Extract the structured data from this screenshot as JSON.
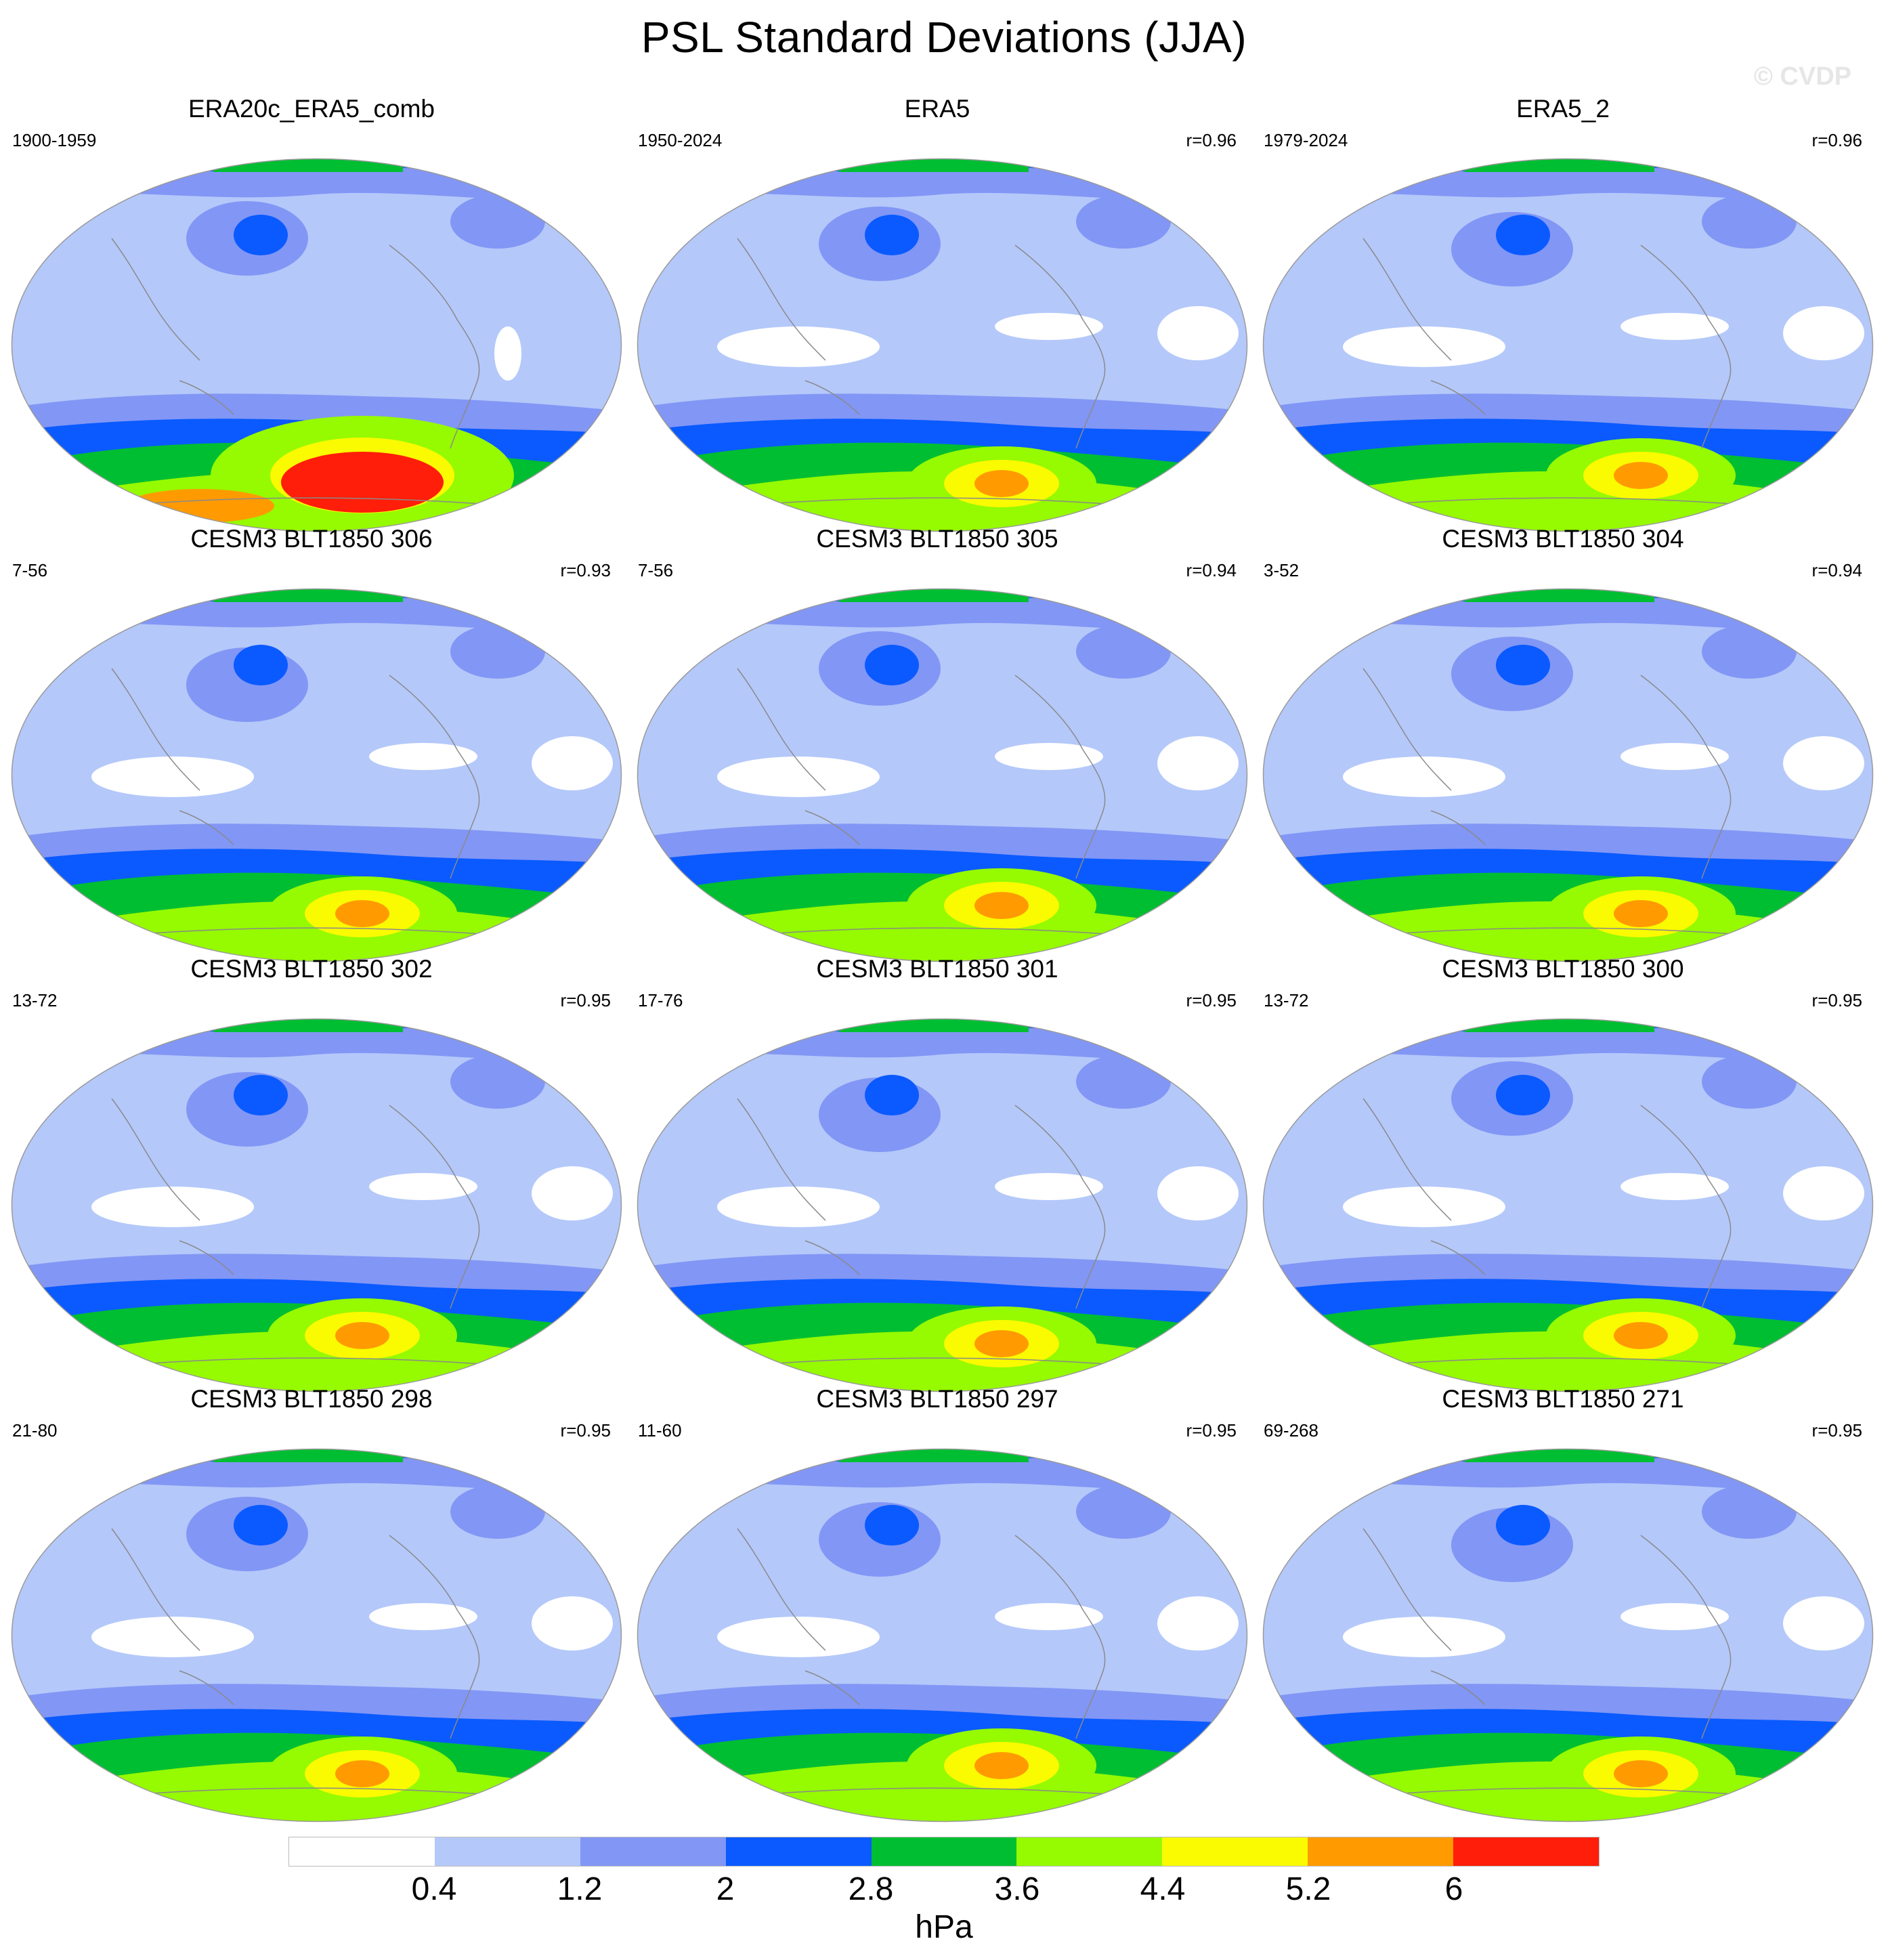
{
  "title": "PSL Standard Deviations (JJA)",
  "watermark": "© CVDP",
  "colorbar": {
    "colors": [
      "#ffffff",
      "#b4c8fa",
      "#8296f5",
      "#0a5aff",
      "#00be32",
      "#96fa00",
      "#fafa00",
      "#ff9b00",
      "#ff1e0a"
    ],
    "ticks": [
      "0.4",
      "1.2",
      "2",
      "2.8",
      "3.6",
      "4.4",
      "5.2",
      "6"
    ],
    "units": "hPa"
  },
  "panels": [
    {
      "title": "ERA20c_ERA5_comb",
      "years": "1900-1959",
      "corr": ""
    },
    {
      "title": "ERA5",
      "years": "1950-2024",
      "corr": "r=0.96"
    },
    {
      "title": "ERA5_2",
      "years": "1979-2024",
      "corr": "r=0.96"
    },
    {
      "title": "CESM3 BLT1850 306",
      "years": "7-56",
      "corr": "r=0.93"
    },
    {
      "title": "CESM3 BLT1850 305",
      "years": "7-56",
      "corr": "r=0.94"
    },
    {
      "title": "CESM3 BLT1850 304",
      "years": "3-52",
      "corr": "r=0.94"
    },
    {
      "title": "CESM3 BLT1850 302",
      "years": "13-72",
      "corr": "r=0.95"
    },
    {
      "title": "CESM3 BLT1850 301",
      "years": "17-76",
      "corr": "r=0.95"
    },
    {
      "title": "CESM3 BLT1850 300",
      "years": "13-72",
      "corr": "r=0.95"
    },
    {
      "title": "CESM3 BLT1850 298",
      "years": "21-80",
      "corr": "r=0.95"
    },
    {
      "title": "CESM3 BLT1850 297",
      "years": "11-60",
      "corr": "r=0.95"
    },
    {
      "title": "CESM3 BLT1850 271",
      "years": "69-268",
      "corr": "r=0.95"
    }
  ]
}
